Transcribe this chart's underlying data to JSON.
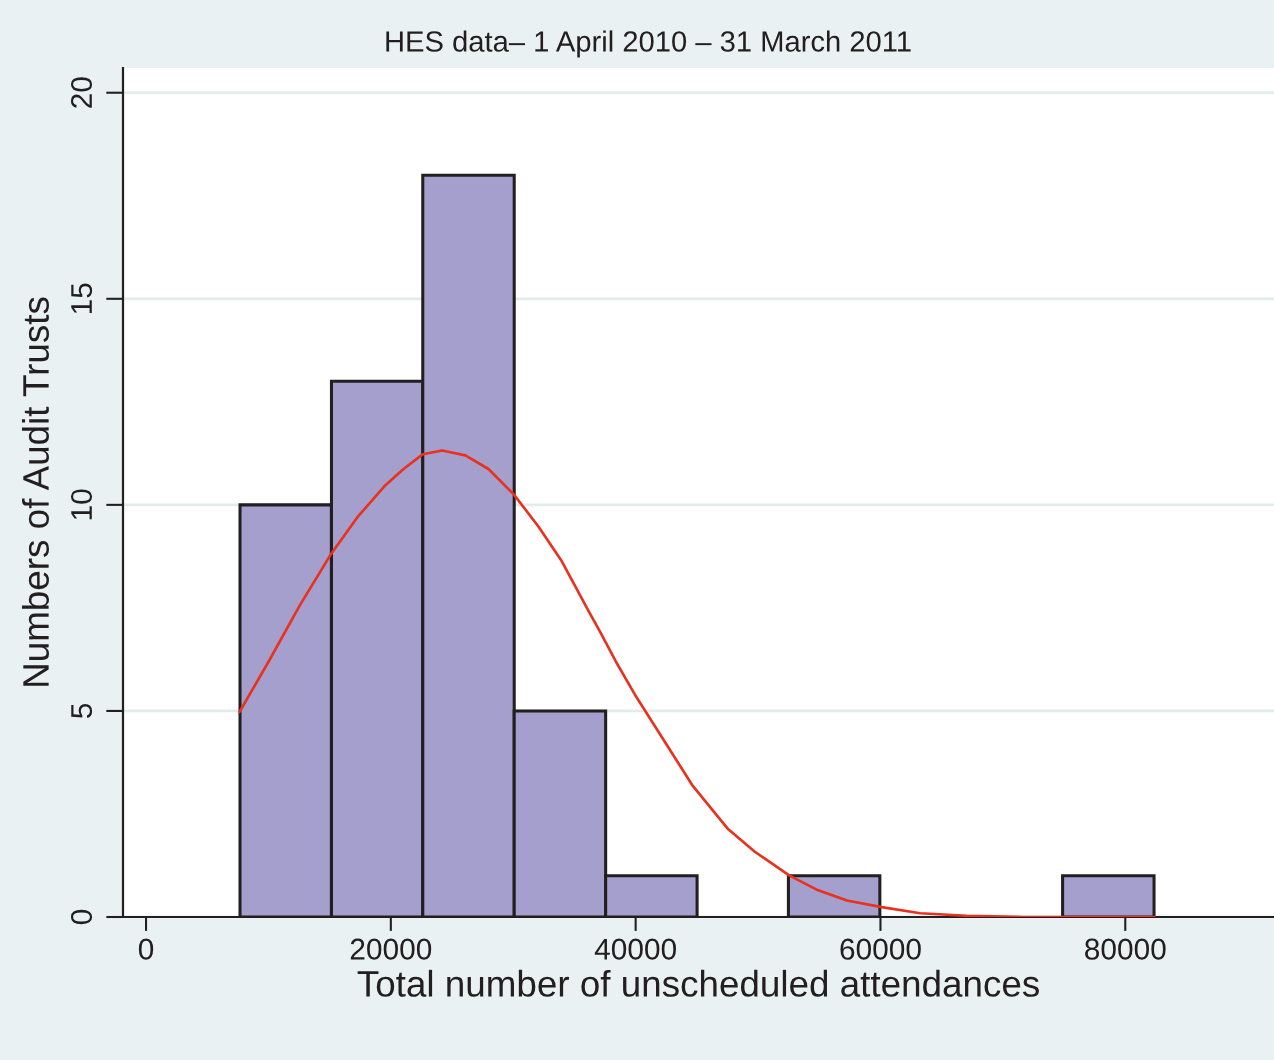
{
  "chart_data": {
    "type": "histogram",
    "title": "HES data– 1 April 2010 – 31 March 2011",
    "xlabel": "Total number of unscheduled attendances",
    "ylabel": "Numbers of Audit Trusts",
    "bins": [
      7680,
      15150,
      22610,
      30080,
      37550,
      45020,
      52480,
      59950,
      67420,
      74880,
      82350
    ],
    "values": [
      10,
      13,
      18,
      5,
      1,
      0,
      1,
      0,
      0,
      1
    ],
    "color": "#a59fce",
    "series": [
      {
        "type": "line",
        "color": "#e8321e",
        "x": [
          7650,
          10020,
          12540,
          15120,
          17270,
          19470,
          21040,
          22620,
          24200,
          26090,
          27980,
          30030,
          32070,
          33970,
          36180,
          37100,
          38380,
          39930,
          42770,
          44670,
          47500,
          49710,
          52540,
          54750,
          57260,
          60100,
          63250,
          67040,
          71760,
          82380
        ],
        "values": [
          4.98,
          6.2,
          7.55,
          8.81,
          9.7,
          10.45,
          10.87,
          11.23,
          11.32,
          11.2,
          10.87,
          10.26,
          9.47,
          8.63,
          7.41,
          6.92,
          6.2,
          5.4,
          4.07,
          3.18,
          2.15,
          1.59,
          1.01,
          0.67,
          0.4,
          0.24,
          0.09,
          0.03,
          0.0,
          0.0
        ]
      }
    ],
    "xlim": [
      -1880,
      92150
    ],
    "ylim": [
      0,
      20.6
    ],
    "xticks": [
      0,
      20000,
      40000,
      60000,
      80000
    ],
    "yticks": [
      0,
      5,
      10,
      15,
      20
    ],
    "grid": "y"
  }
}
